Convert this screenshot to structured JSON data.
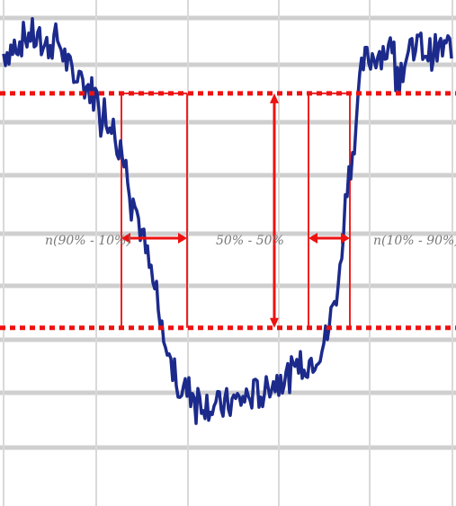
{
  "chart_data": {
    "type": "line",
    "title": "",
    "xlabel": "",
    "ylabel": "",
    "grid": true,
    "xlim": [
      0,
      100
    ],
    "ylim": [
      0,
      100
    ],
    "levels": {
      "high": 82,
      "low": 35
    },
    "series": [
      {
        "x": [
          0,
          3,
          6,
          9,
          12,
          15,
          18,
          21,
          24,
          27,
          30,
          33,
          36,
          39,
          42,
          45,
          48,
          51,
          54,
          57,
          60,
          63,
          66,
          69,
          72,
          75,
          76,
          78,
          80,
          83,
          86,
          89,
          92,
          95,
          98,
          100
        ],
        "values": [
          90,
          92,
          94,
          91,
          93,
          86,
          84,
          81,
          76,
          68,
          57,
          45,
          31,
          23,
          22,
          20,
          19,
          20,
          21,
          22,
          24,
          25,
          27,
          29,
          33,
          46,
          60,
          72,
          88,
          90,
          91,
          87,
          92,
          90,
          91,
          89
        ]
      }
    ],
    "colors": {
      "trace": "#1c2a8c",
      "markers": "#ee1111",
      "grid": "#cfcfcf"
    },
    "annotations": [
      {
        "id": "fall",
        "text": "n(90% - 10%)"
      },
      {
        "id": "width",
        "text": "50% - 50%"
      },
      {
        "id": "rise",
        "text": "n(10% - 90%)"
      }
    ]
  }
}
